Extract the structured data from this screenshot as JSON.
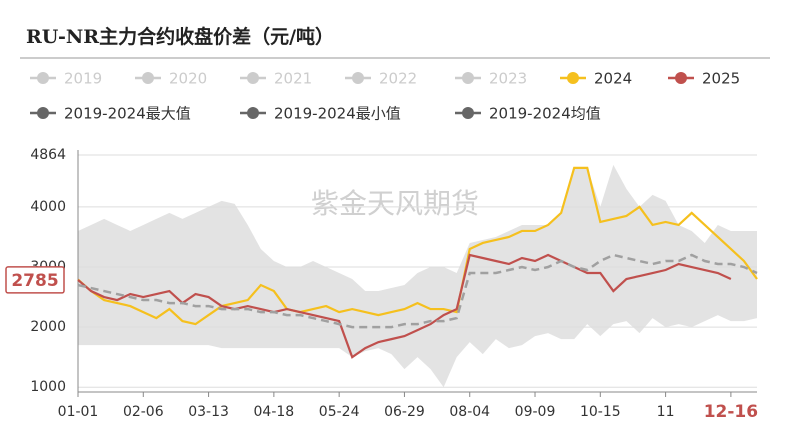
{
  "chart_data": {
    "type": "line",
    "title": "RU-NR主力合约收盘价差（元/吨）",
    "watermark": "紫金天风期货",
    "categories": [
      "01-01",
      null,
      null,
      null,
      null,
      "02-06",
      null,
      null,
      null,
      null,
      "03-13",
      null,
      null,
      null,
      null,
      "04-18",
      null,
      null,
      null,
      null,
      "05-24",
      null,
      null,
      null,
      null,
      "06-29",
      null,
      null,
      null,
      null,
      "08-04",
      null,
      null,
      null,
      null,
      "09-09",
      null,
      null,
      null,
      null,
      "10-15",
      null,
      null,
      null,
      null,
      "11",
      null,
      null,
      null,
      null,
      "12-16",
      null,
      null
    ],
    "highlight_index": 50,
    "current_value": 2785,
    "ylim": [
      920,
      4864
    ],
    "yticks": [
      1000,
      2000,
      3000,
      4000,
      4864
    ],
    "grid": true,
    "series": [
      {
        "name": "2019",
        "color": "#cccccc",
        "hidden": true
      },
      {
        "name": "2020",
        "color": "#cccccc",
        "hidden": true
      },
      {
        "name": "2021",
        "color": "#cccccc",
        "hidden": true
      },
      {
        "name": "2022",
        "color": "#cccccc",
        "hidden": true
      },
      {
        "name": "2023",
        "color": "#cccccc",
        "hidden": true
      },
      {
        "name": "2024",
        "color": "#f5c01e",
        "values": [
          2790,
          2600,
          2450,
          2400,
          2350,
          2250,
          2150,
          2300,
          2100,
          2050,
          2200,
          2350,
          2400,
          2450,
          2700,
          2600,
          2300,
          2250,
          2300,
          2350,
          2250,
          2300,
          2250,
          2200,
          2250,
          2300,
          2400,
          2300,
          2300,
          2250,
          3300,
          3400,
          3450,
          3500,
          3600,
          3600,
          3700,
          3900,
          4650,
          4650,
          3750,
          3800,
          3850,
          4000,
          3700,
          3750,
          3700,
          3900,
          3700,
          3500,
          3300,
          3100,
          2800
        ]
      },
      {
        "name": "2025",
        "color": "#c0504d",
        "values": [
          2785,
          2600,
          2500,
          2450,
          2550,
          2500,
          2550,
          2600,
          2400,
          2550,
          2500,
          2350,
          2300,
          2350,
          2300,
          2250,
          2300,
          2250,
          2200,
          2150,
          2100,
          1500,
          1650,
          1750,
          1800,
          1850,
          1950,
          2050,
          2200,
          2300,
          3200,
          3150,
          3100,
          3050,
          3150,
          3100,
          3200,
          3100,
          3000,
          2900,
          2900,
          2600,
          2800,
          2850,
          2900,
          2950,
          3050,
          3000,
          2950,
          2900,
          2800,
          null,
          null
        ]
      },
      {
        "name": "2019-2024最大值",
        "color": "#666666",
        "band": "max",
        "values": [
          3600,
          3700,
          3800,
          3700,
          3600,
          3700,
          3800,
          3900,
          3800,
          3900,
          4000,
          4100,
          4050,
          3700,
          3300,
          3100,
          3000,
          3000,
          3100,
          3000,
          2900,
          2800,
          2600,
          2600,
          2650,
          2700,
          2900,
          3000,
          3000,
          2900,
          3400,
          3450,
          3500,
          3600,
          3700,
          3700,
          3700,
          3900,
          4650,
          4650,
          4000,
          4700,
          4300,
          4000,
          4200,
          4100,
          3700,
          3600,
          3400,
          3700,
          3600,
          3600,
          3600
        ]
      },
      {
        "name": "2019-2024最小值",
        "color": "#666666",
        "band": "min",
        "values": [
          1700,
          1700,
          1700,
          1700,
          1700,
          1700,
          1700,
          1700,
          1700,
          1700,
          1700,
          1650,
          1650,
          1650,
          1650,
          1650,
          1650,
          1650,
          1650,
          1650,
          1650,
          1500,
          1600,
          1650,
          1550,
          1300,
          1500,
          1300,
          1000,
          1500,
          1750,
          1550,
          1800,
          1650,
          1700,
          1850,
          1900,
          1800,
          1800,
          2050,
          1850,
          2050,
          2100,
          1900,
          2150,
          2000,
          2050,
          2000,
          2100,
          2200,
          2100,
          2100,
          2150
        ]
      },
      {
        "name": "2019-2024均值",
        "color": "#666666",
        "line_color": "#a0a0a0",
        "dashed": true,
        "values": [
          2700,
          2650,
          2600,
          2550,
          2500,
          2450,
          2450,
          2400,
          2400,
          2350,
          2350,
          2300,
          2300,
          2300,
          2250,
          2250,
          2200,
          2200,
          2150,
          2100,
          2050,
          2000,
          2000,
          2000,
          2000,
          2050,
          2050,
          2100,
          2100,
          2150,
          2900,
          2900,
          2900,
          2950,
          3000,
          2950,
          3000,
          3100,
          3000,
          2950,
          3100,
          3200,
          3150,
          3100,
          3050,
          3100,
          3100,
          3200,
          3100,
          3050,
          3050,
          3000,
          2900
        ]
      }
    ]
  }
}
